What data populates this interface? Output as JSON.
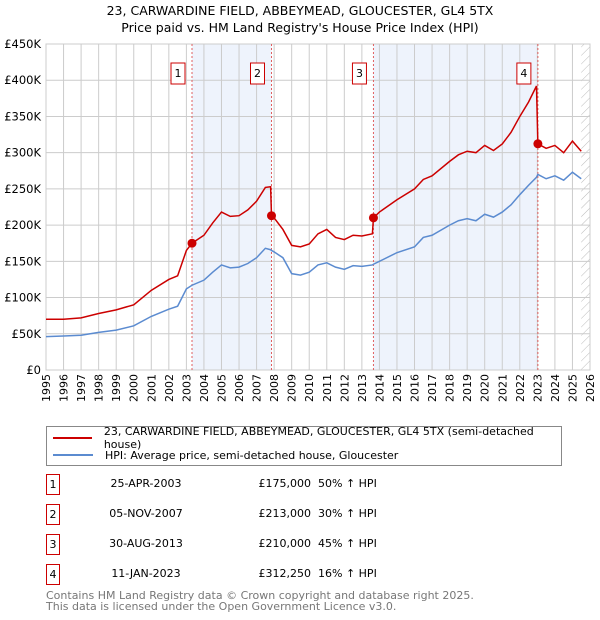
{
  "chart_data": {
    "type": "line",
    "title": "23, CARWARDINE FIELD, ABBEYMEAD, GLOUCESTER, GL4 5TX",
    "subtitle": "Price paid vs. HM Land Registry's House Price Index (HPI)",
    "xlim": [
      1995,
      2026
    ],
    "ylim": [
      0,
      450000
    ],
    "x_ticks": [
      "1995",
      "1996",
      "1997",
      "1998",
      "1999",
      "2000",
      "2001",
      "2002",
      "2003",
      "2004",
      "2005",
      "2006",
      "2007",
      "2008",
      "2009",
      "2010",
      "2011",
      "2012",
      "2013",
      "2014",
      "2015",
      "2016",
      "2017",
      "2018",
      "2019",
      "2020",
      "2021",
      "2022",
      "2023",
      "2024",
      "2025",
      "2026"
    ],
    "y_ticks": [
      {
        "v": 0,
        "label": "£0"
      },
      {
        "v": 50000,
        "label": "£50K"
      },
      {
        "v": 100000,
        "label": "£100K"
      },
      {
        "v": 150000,
        "label": "£150K"
      },
      {
        "v": 200000,
        "label": "£200K"
      },
      {
        "v": 250000,
        "label": "£250K"
      },
      {
        "v": 300000,
        "label": "£300K"
      },
      {
        "v": 350000,
        "label": "£350K"
      },
      {
        "v": 400000,
        "label": "£400K"
      },
      {
        "v": 450000,
        "label": "£450K"
      }
    ],
    "x": [
      1995,
      1996,
      1997,
      1998,
      1999,
      2000,
      2001,
      2002,
      2002.5,
      2003,
      2003.32,
      2004,
      2004.5,
      2005,
      2005.5,
      2006,
      2006.5,
      2007,
      2007.5,
      2007.8,
      2007.85,
      2008,
      2008.5,
      2009,
      2009.5,
      2010,
      2010.5,
      2011,
      2011.5,
      2012,
      2012.5,
      2013,
      2013.6,
      2013.66,
      2014,
      2015,
      2016,
      2016.5,
      2017,
      2018,
      2018.5,
      2019,
      2019.5,
      2020,
      2020.5,
      2021,
      2021.5,
      2022,
      2022.5,
      2022.95,
      2023.03,
      2023.5,
      2024,
      2024.5,
      2025,
      2025.5
    ],
    "series": [
      {
        "name": "23, CARWARDINE FIELD, ABBEYMEAD, GLOUCESTER, GL4 5TX (semi-detached house)",
        "color": "#cc0000",
        "values": [
          70,
          70,
          72,
          78,
          83,
          90,
          110,
          125,
          130,
          165,
          175,
          186,
          203,
          218,
          212,
          213,
          221,
          233,
          252,
          253,
          213,
          210,
          194,
          172,
          170,
          174,
          188,
          194,
          183,
          180,
          186,
          185,
          188,
          210,
          218,
          235,
          250,
          263,
          268,
          288,
          297,
          302,
          300,
          310,
          303,
          312,
          328,
          350,
          370,
          392,
          312,
          306,
          310,
          300,
          316,
          302
        ]
      },
      {
        "name": "HPI: Average price, semi-detached house, Gloucester",
        "color": "#5b8bd0",
        "values": [
          46,
          47,
          48,
          52,
          55,
          61,
          74,
          84,
          88,
          112,
          117,
          124,
          135,
          145,
          141,
          142,
          147,
          155,
          168,
          166,
          165,
          163,
          155,
          133,
          131,
          135,
          145,
          148,
          142,
          139,
          144,
          143,
          145,
          146,
          150,
          162,
          170,
          183,
          186,
          200,
          206,
          209,
          206,
          215,
          211,
          218,
          228,
          242,
          255,
          266,
          270,
          264,
          268,
          262,
          273,
          264
        ]
      }
    ],
    "values_unit": "thousands GBP",
    "shaded_periods": [
      [
        2003.32,
        2007.85
      ],
      [
        2013.66,
        2023.03
      ]
    ],
    "forecast_from": 2025.5,
    "sales": [
      {
        "n": "1",
        "x": 2003.32,
        "price": 175,
        "date": "25-APR-2003",
        "price_label": "£175,000",
        "hpi": "50% ↑ HPI"
      },
      {
        "n": "2",
        "x": 2007.85,
        "price": 213,
        "date": "05-NOV-2007",
        "price_label": "£213,000",
        "hpi": "30% ↑ HPI"
      },
      {
        "n": "3",
        "x": 2013.66,
        "price": 210,
        "date": "30-AUG-2013",
        "price_label": "£210,000",
        "hpi": "45% ↑ HPI"
      },
      {
        "n": "4",
        "x": 2023.03,
        "price": 312.25,
        "date": "11-JAN-2023",
        "price_label": "£312,250",
        "hpi": "16% ↑ HPI"
      }
    ],
    "legend": "bottom"
  },
  "footer": {
    "line1": "Contains HM Land Registry data © Crown copyright and database right 2025.",
    "line2": "This data is licensed under the Open Government Licence v3.0."
  }
}
